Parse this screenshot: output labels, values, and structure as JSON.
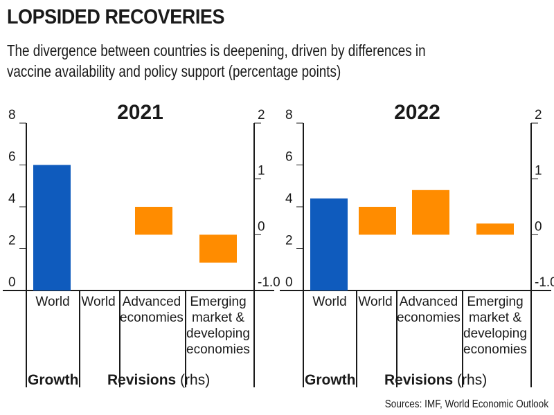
{
  "header": {
    "title": "LOPSIDED RECOVERIES",
    "subtitle": "The divergence between countries is deepening, driven by differences in vaccine availability and policy support (percentage points)"
  },
  "source": "Sources: IMF, World Economic Outlook",
  "colors": {
    "growth": "#0f5bbd",
    "revision": "#ff8c00",
    "axis": "#1a1a1a"
  },
  "chart_data": [
    {
      "type": "bar",
      "title": "2021",
      "left_axis": {
        "ticks": [
          "0",
          "2",
          "4",
          "6",
          "8"
        ],
        "ylim": [
          0,
          8
        ]
      },
      "right_axis": {
        "ticks": [
          "-1.0",
          "0",
          "1",
          "2"
        ],
        "ylim": [
          -1,
          2
        ]
      },
      "groups": {
        "growth": "Growth",
        "revisions": "Revisions",
        "revisions_suffix": " (rhs)"
      },
      "categories": [
        "World",
        "World",
        "Advanced economies",
        "Emerging market & developing economies"
      ],
      "category_lines": [
        [
          "World"
        ],
        [
          "World"
        ],
        [
          "Advanced",
          "economies"
        ],
        [
          "Emerging",
          "market &",
          "developing",
          "economies"
        ]
      ],
      "growth": {
        "category": "World",
        "value": 6.0,
        "axis": "left"
      },
      "revisions": {
        "values": [
          0.0,
          0.5,
          -0.5
        ],
        "axis": "right"
      }
    },
    {
      "type": "bar",
      "title": "2022",
      "left_axis": {
        "ticks": [
          "0",
          "2",
          "4",
          "6",
          "8"
        ],
        "ylim": [
          0,
          8
        ]
      },
      "right_axis": {
        "ticks": [
          "-1.0",
          "0",
          "1",
          "2"
        ],
        "ylim": [
          -1,
          2
        ]
      },
      "groups": {
        "growth": "Growth",
        "revisions": "Revisions",
        "revisions_suffix": " (rhs)"
      },
      "categories": [
        "World",
        "World",
        "Advanced economies",
        "Emerging market & developing economies"
      ],
      "category_lines": [
        [
          "World"
        ],
        [
          "World"
        ],
        [
          "Advanced",
          "economies"
        ],
        [
          "Emerging",
          "market &",
          "developing",
          "economies"
        ]
      ],
      "growth": {
        "category": "World",
        "value": 4.4,
        "axis": "left"
      },
      "revisions": {
        "values": [
          0.5,
          0.8,
          0.2
        ],
        "axis": "right"
      }
    }
  ]
}
